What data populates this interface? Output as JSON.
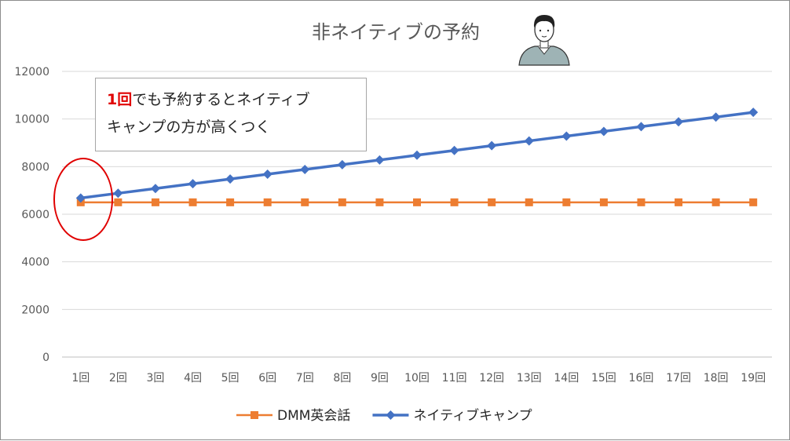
{
  "chart_data": {
    "type": "line",
    "title": "非ネイティブの予約",
    "categories": [
      "1回",
      "2回",
      "3回",
      "4回",
      "5回",
      "6回",
      "7回",
      "8回",
      "9回",
      "10回",
      "11回",
      "12回",
      "13回",
      "14回",
      "15回",
      "16回",
      "17回",
      "18回",
      "19回"
    ],
    "ylim": [
      0,
      12000
    ],
    "yticks": [
      0,
      2000,
      4000,
      6000,
      8000,
      10000,
      12000
    ],
    "grid": true,
    "legend_position": "bottom",
    "series": [
      {
        "name": "DMM英会話",
        "color": "#ed7d31",
        "marker": "square",
        "values": [
          6500,
          6500,
          6500,
          6500,
          6500,
          6500,
          6500,
          6500,
          6500,
          6500,
          6500,
          6500,
          6500,
          6500,
          6500,
          6500,
          6500,
          6500,
          6500
        ]
      },
      {
        "name": "ネイティブキャンプ",
        "color": "#4472c4",
        "marker": "diamond",
        "values": [
          6680,
          6880,
          7080,
          7280,
          7480,
          7680,
          7880,
          8080,
          8280,
          8480,
          8680,
          8880,
          9080,
          9280,
          9480,
          9680,
          9880,
          10080,
          10280
        ]
      }
    ],
    "annotation": {
      "highlight": "1回",
      "text_line1_rest": "でも予約するとネイティブ",
      "text_line2": "キャンプの方が高くつく",
      "highlight_color": "#e00000",
      "circle_color": "#e00000",
      "circle_category": "1回"
    }
  }
}
